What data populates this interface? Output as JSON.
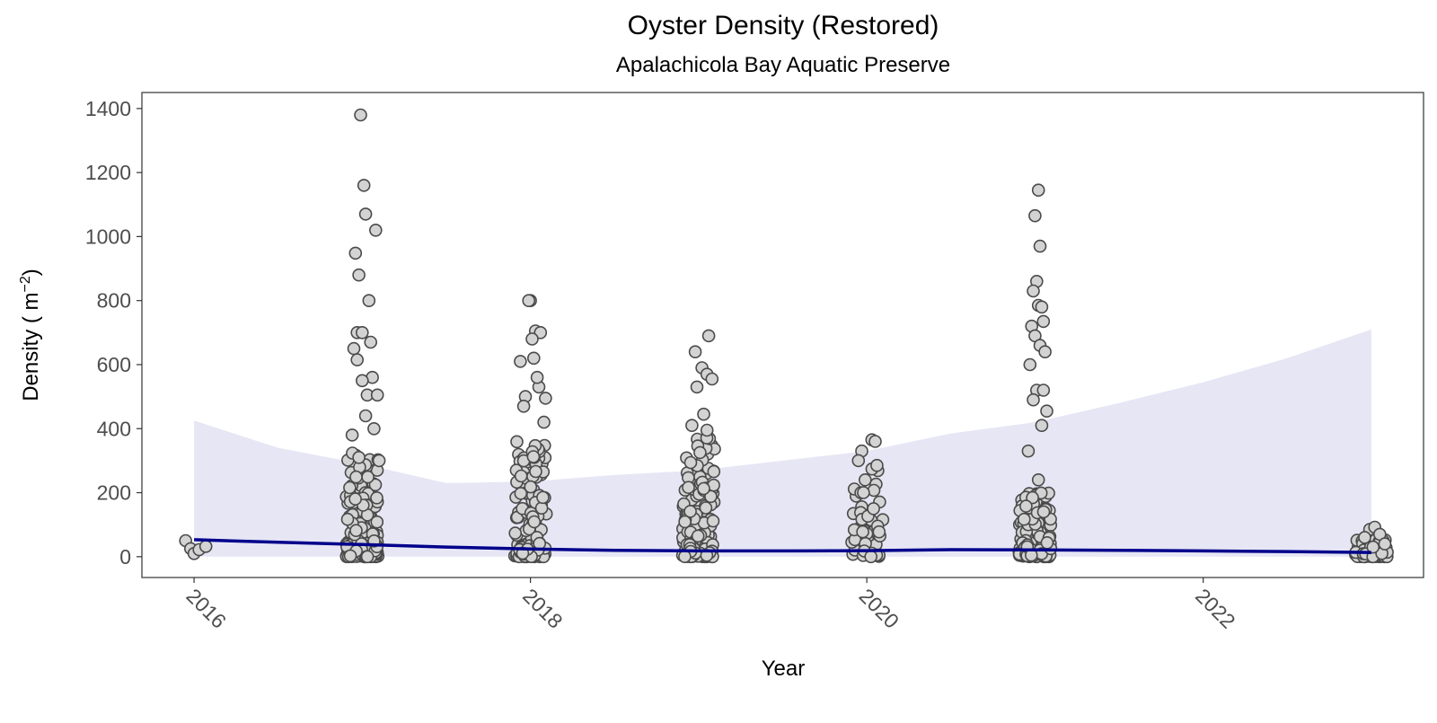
{
  "chart_data": {
    "type": "scatter",
    "title": "Oyster Density (Restored)",
    "subtitle": "Apalachicola Bay Aquatic Preserve",
    "xlabel": "Year",
    "ylabel": "Density ( m",
    "ylabel_superscript": "−2",
    "ylabel_suffix": ")",
    "xlim": [
      2015.69,
      2023.31
    ],
    "ylim": [
      -65,
      1450
    ],
    "x_ticks": [
      2016,
      2018,
      2020,
      2022
    ],
    "y_ticks": [
      0,
      200,
      400,
      600,
      800,
      1000,
      1200,
      1400
    ],
    "grid": false,
    "legend": "none",
    "colors": {
      "title": "#2e4a62",
      "point_fill": "#d3d3d3",
      "point_stroke": "#4a4a4a",
      "trend_line": "#00008b",
      "ribbon": "#e6e6f5",
      "panel_border": "#333333"
    },
    "trend": {
      "x": [
        2016,
        2016.5,
        2017,
        2017.5,
        2018,
        2018.5,
        2019,
        2019.5,
        2020,
        2020.5,
        2021,
        2021.5,
        2022,
        2022.5,
        2023
      ],
      "y": [
        53,
        45,
        38,
        30,
        24,
        20,
        18,
        18,
        19,
        22,
        21,
        20,
        18,
        16,
        13
      ],
      "lower": [
        0,
        0,
        0,
        0,
        0,
        0,
        0,
        0,
        0,
        0,
        0,
        0,
        0,
        0,
        0
      ],
      "upper": [
        425,
        340,
        290,
        230,
        235,
        255,
        270,
        300,
        330,
        385,
        420,
        480,
        545,
        620,
        710
      ]
    },
    "outliers": {
      "x": [
        2015.95,
        2015.98,
        2016.0,
        2016.03,
        2016.07,
        2016.99,
        2017.01,
        2017.02,
        2017.08,
        2016.96,
        2016.98,
        2017.04,
        2016.97,
        2017.0,
        2017.06,
        2017.03,
        2016.95,
        2016.97,
        2017.0,
        2017.05,
        2017.09,
        2017.02,
        2017.07,
        2016.94,
        2016.98,
        2017.1,
        2018.0,
        2017.99,
        2018.03,
        2018.06,
        2018.01,
        2017.94,
        2018.02,
        2018.05,
        2017.97,
        2018.09,
        2018.04,
        2017.96,
        2018.08,
        2019.06,
        2018.98,
        2019.02,
        2019.05,
        2019.08,
        2018.99,
        2019.03,
        2019.05,
        2018.96,
        2019.97,
        2020.03,
        2019.95,
        2020.05,
        2019.99,
        2020.06,
        2019.98,
        2020.04,
        2021.02,
        2021.0,
        2021.03,
        2021.01,
        2020.99,
        2021.02,
        2021.04,
        2021.05,
        2020.98,
        2021.0,
        2021.03,
        2021.06,
        2020.97,
        2021.01,
        2021.05,
        2020.99,
        2021.07,
        2021.04,
        2020.96,
        2021.02,
        2022.99,
        2023.02,
        2023.05,
        2022.96,
        2023.08,
        2023.01
      ],
      "y": [
        50,
        25,
        10,
        22,
        32,
        1380,
        1160,
        1070,
        1020,
        948,
        880,
        800,
        700,
        700,
        560,
        505,
        650,
        615,
        550,
        670,
        505,
        440,
        400,
        380,
        310,
        300,
        800,
        800,
        705,
        700,
        680,
        610,
        620,
        530,
        500,
        495,
        560,
        470,
        420,
        690,
        640,
        590,
        570,
        555,
        530,
        445,
        395,
        410,
        330,
        365,
        300,
        360,
        240,
        285,
        200,
        150,
        1145,
        1065,
        970,
        860,
        830,
        785,
        780,
        735,
        720,
        690,
        660,
        640,
        600,
        520,
        520,
        490,
        455,
        410,
        330,
        240,
        85,
        92,
        70,
        60,
        40,
        30
      ]
    },
    "clusters": [
      {
        "x": 2017,
        "n": 170,
        "max": 330,
        "seed": 11
      },
      {
        "x": 2018,
        "n": 150,
        "max": 370,
        "seed": 23
      },
      {
        "x": 2019,
        "n": 150,
        "max": 380,
        "seed": 37
      },
      {
        "x": 2020,
        "n": 45,
        "max": 280,
        "seed": 41
      },
      {
        "x": 2021,
        "n": 150,
        "max": 200,
        "seed": 53
      },
      {
        "x": 2023,
        "n": 70,
        "max": 60,
        "seed": 67
      }
    ]
  }
}
